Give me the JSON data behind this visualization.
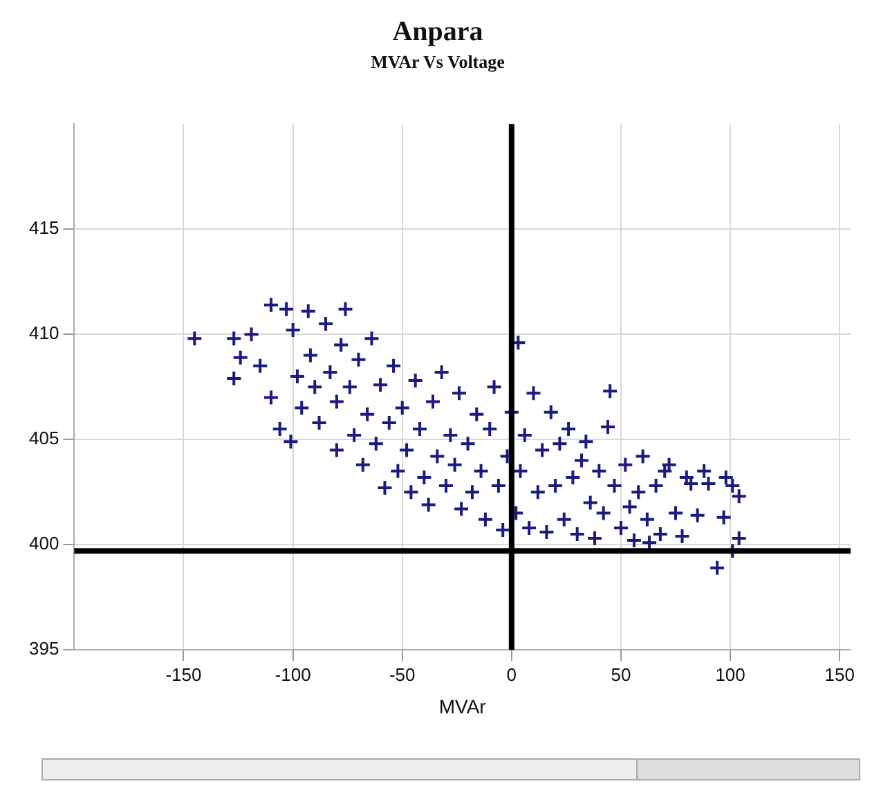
{
  "chart_data": {
    "type": "scatter",
    "title": "Anpara",
    "subtitle": "MVAr Vs Voltage",
    "xlabel": "MVAr",
    "color": "#1a1a80",
    "marker": "cross",
    "grid": true,
    "xlim": [
      -200,
      155
    ],
    "xticks": [
      -150,
      -100,
      -50,
      0,
      50,
      100,
      150
    ],
    "ylim": [
      395,
      420
    ],
    "yticks": [
      395,
      400,
      405,
      410,
      415
    ],
    "ref_lines": [
      {
        "axis": "x",
        "value": 0,
        "color": "#000000"
      },
      {
        "axis": "y",
        "value": 399.7,
        "color": "#000000"
      }
    ],
    "x": [
      -145,
      -127,
      -127,
      -124,
      -119,
      -115,
      -110,
      -110,
      -106,
      -103,
      -101,
      -100,
      -98,
      -96,
      -93,
      -92,
      -90,
      -88,
      -85,
      -83,
      -80,
      -80,
      -78,
      -76,
      -74,
      -72,
      -70,
      -68,
      -66,
      -64,
      -62,
      -60,
      -58,
      -56,
      -54,
      -52,
      -50,
      -48,
      -46,
      -44,
      -42,
      -40,
      -38,
      -36,
      -34,
      -32,
      -30,
      -28,
      -26,
      -24,
      -23,
      -20,
      -18,
      -16,
      -14,
      -12,
      -10,
      -8,
      -6,
      -4,
      -2,
      0,
      2,
      3,
      4,
      6,
      8,
      10,
      12,
      14,
      16,
      18,
      20,
      22,
      24,
      26,
      28,
      30,
      32,
      34,
      36,
      38,
      40,
      42,
      44,
      45,
      47,
      50,
      52,
      54,
      56,
      58,
      60,
      62,
      63,
      66,
      68,
      70,
      72,
      75,
      78,
      80,
      82,
      85,
      88,
      90,
      94,
      97,
      98,
      101,
      101,
      104,
      104
    ],
    "values": [
      409.8,
      409.8,
      407.9,
      408.9,
      410,
      408.5,
      411.4,
      407,
      405.5,
      411.2,
      404.9,
      410.2,
      408,
      406.5,
      411.1,
      409,
      407.5,
      405.8,
      410.5,
      408.2,
      404.5,
      406.8,
      409.5,
      411.2,
      407.5,
      405.2,
      408.8,
      403.8,
      406.2,
      409.8,
      404.8,
      407.6,
      402.7,
      405.8,
      408.5,
      403.5,
      406.5,
      404.5,
      402.5,
      407.8,
      405.5,
      403.2,
      401.9,
      406.8,
      404.2,
      408.2,
      402.8,
      405.2,
      403.8,
      407.2,
      401.7,
      404.8,
      402.5,
      406.2,
      403.5,
      401.2,
      405.5,
      407.5,
      402.8,
      400.7,
      404.2,
      406.3,
      401.5,
      409.6,
      403.5,
      405.2,
      400.8,
      407.2,
      402.5,
      404.5,
      400.6,
      406.3,
      402.8,
      404.8,
      401.2,
      405.5,
      403.2,
      400.5,
      404,
      404.9,
      402,
      400.3,
      403.5,
      401.5,
      405.6,
      407.3,
      402.8,
      400.8,
      403.8,
      401.8,
      400.2,
      402.5,
      404.2,
      401.2,
      400.1,
      402.8,
      400.5,
      403.5,
      403.8,
      401.5,
      400.4,
      403.2,
      402.9,
      401.4,
      403.5,
      402.9,
      398.9,
      401.3,
      403.2,
      402.8,
      399.7,
      402.3,
      400.3
    ]
  }
}
